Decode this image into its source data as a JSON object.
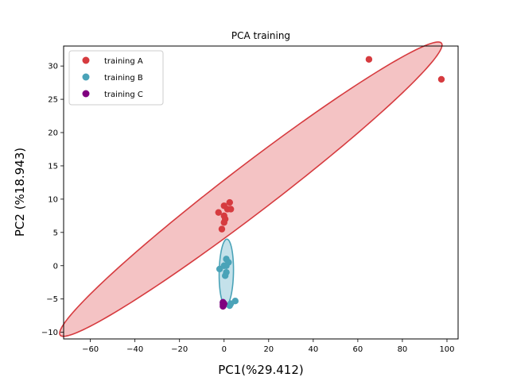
{
  "chart_data": {
    "type": "scatter",
    "title": "PCA training",
    "xlabel": "PC1(%29.412)",
    "ylabel": "PC2 (%18.943)",
    "xlim": [
      -72,
      105
    ],
    "ylim": [
      -11,
      33
    ],
    "xticks": [
      -60,
      -40,
      -20,
      0,
      20,
      40,
      60,
      80,
      100
    ],
    "yticks": [
      -10,
      -5,
      0,
      5,
      10,
      15,
      20,
      25,
      30
    ],
    "grid": false,
    "legend_position": "top-left",
    "series": [
      {
        "name": "training A",
        "color": "#d63b3f",
        "points": [
          [
            65,
            31
          ],
          [
            97.5,
            28
          ],
          [
            2.5,
            9.5
          ],
          [
            0,
            9
          ],
          [
            1.5,
            8.5
          ],
          [
            3,
            8.5
          ],
          [
            -2.5,
            8
          ],
          [
            0,
            7.5
          ],
          [
            0.5,
            7
          ],
          [
            0,
            6.5
          ],
          [
            -1,
            5.5
          ]
        ],
        "ellipse": {
          "center": [
            12,
            11.5
          ],
          "semi_major": 88.5,
          "semi_minor": 4.3,
          "angle_deg": 14.2,
          "fill": "#f4c3c4"
        }
      },
      {
        "name": "training B",
        "color": "#4aa3b8",
        "points": [
          [
            1,
            1
          ],
          [
            2,
            0.5
          ],
          [
            0,
            0
          ],
          [
            1,
            0
          ],
          [
            -2,
            -0.5
          ],
          [
            1,
            -1
          ],
          [
            0.5,
            -1.5
          ],
          [
            -0.5,
            -5.5
          ],
          [
            5,
            -5.3
          ],
          [
            3,
            -5.7
          ],
          [
            2.5,
            -6
          ]
        ],
        "ellipse": {
          "center": [
            1,
            -1
          ],
          "semi_major": 5,
          "semi_minor": 3.2,
          "angle_deg": 85,
          "fill": "#c4e1ea"
        }
      },
      {
        "name": "training C",
        "color": "#800080",
        "points": [
          [
            -0.5,
            -5.5
          ],
          [
            -0.5,
            -5.8
          ],
          [
            -0.5,
            -6.1
          ],
          [
            0,
            -5.7
          ],
          [
            -0.3,
            -6.0
          ]
        ]
      }
    ]
  }
}
